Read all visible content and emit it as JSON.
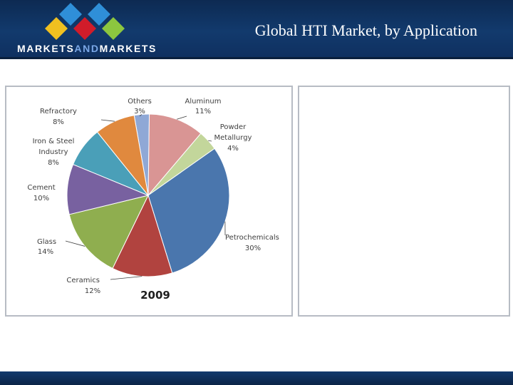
{
  "header": {
    "title": "Global HTI Market, by Application",
    "logo_text_a": "MARKETS",
    "logo_text_and": "AND",
    "logo_text_b": "MARKETS",
    "logo_colors": [
      "#f0c020",
      "#d11c2a",
      "#2f8fd8",
      "#8cc63f"
    ]
  },
  "chart_data": {
    "type": "pie",
    "title": "",
    "annotation": "2009",
    "slices": [
      {
        "label": "Others",
        "value": 3,
        "label_text": "3%",
        "color": "#8fa8d6"
      },
      {
        "label": "Aluminum",
        "value": 11,
        "label_text": "11%",
        "color": "#d99594"
      },
      {
        "label": "Powder Metallurgy",
        "value": 4,
        "label_text": "4%",
        "color": "#c3d69b"
      },
      {
        "label": "Petrochemicals",
        "value": 30,
        "label_text": "30%",
        "color": "#4a76ad"
      },
      {
        "label": "Ceramics",
        "value": 12,
        "label_text": "12%",
        "color": "#b1433f"
      },
      {
        "label": "Glass",
        "value": 14,
        "label_text": "14%",
        "color": "#8fae4f"
      },
      {
        "label": "Cement",
        "value": 10,
        "label_text": "10%",
        "color": "#7861a0"
      },
      {
        "label": "Iron & Steel Industry",
        "value": 8,
        "label_text": "8%",
        "color": "#4a9fb8"
      },
      {
        "label": "Refractory",
        "value": 8,
        "label_text": "8%",
        "color": "#e0893e"
      }
    ]
  }
}
